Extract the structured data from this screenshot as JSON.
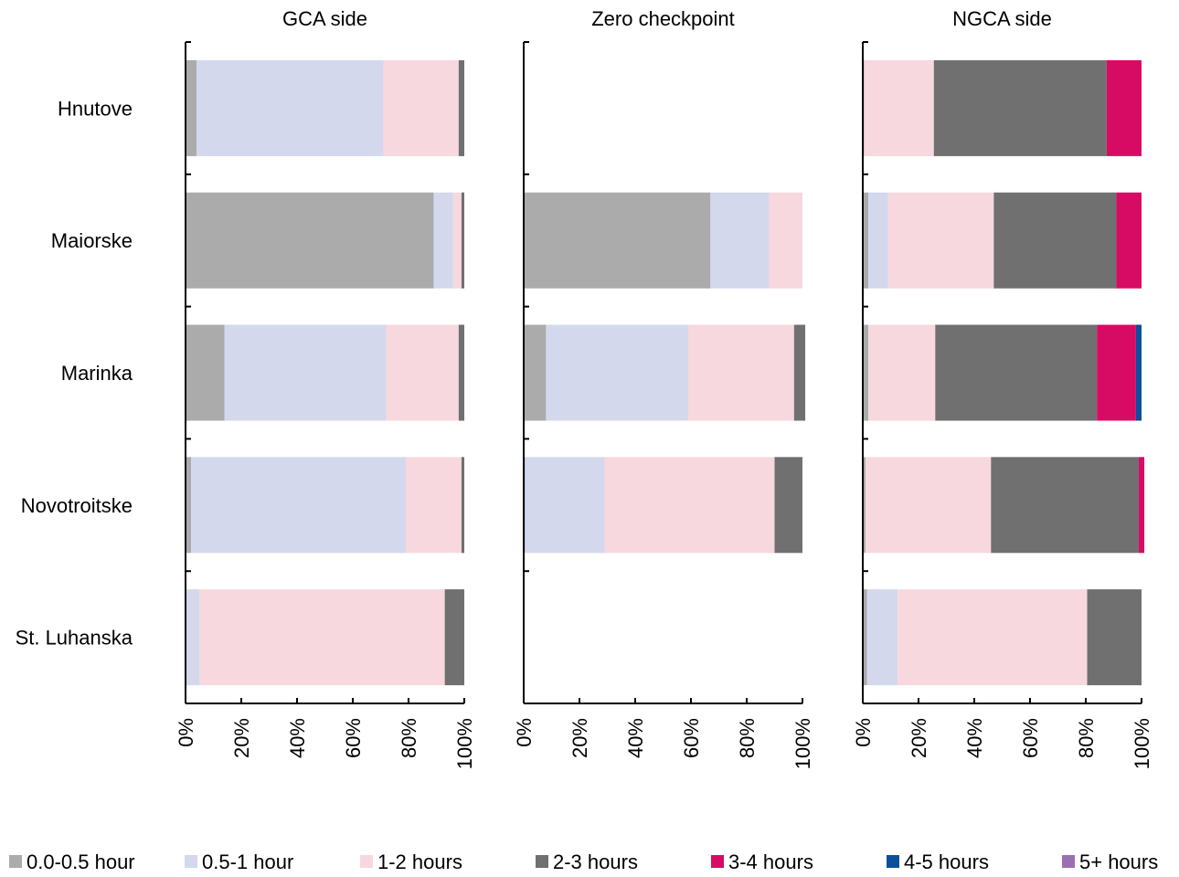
{
  "chart_data": {
    "type": "bar",
    "orientation": "horizontal",
    "stacked": "percent",
    "categories": [
      "Hnutove",
      "Maiorske",
      "Marinka",
      "Novotroitske",
      "St. Luhanska"
    ],
    "tick_labels": [
      "0%",
      "20%",
      "40%",
      "60%",
      "80%",
      "100%"
    ],
    "xlim": [
      0,
      100
    ],
    "grid": false,
    "legend_position": "bottom",
    "legend": [
      {
        "name": "0.0-0.5 hour",
        "color": "#ababab"
      },
      {
        "name": "0.5-1 hour",
        "color": "#d3d8ed"
      },
      {
        "name": "1-2 hours",
        "color": "#f6d8de"
      },
      {
        "name": "2-3 hours",
        "color": "#707070"
      },
      {
        "name": "3-4 hours",
        "color": "#d80b64"
      },
      {
        "name": "4-5 hours",
        "color": "#0a4f9e"
      },
      {
        "name": "5+ hours",
        "color": "#9c6fb4"
      }
    ],
    "panels": [
      {
        "title": "GCA side",
        "values": [
          [
            4,
            67,
            27,
            2,
            0,
            0,
            0
          ],
          [
            89,
            7,
            3,
            1,
            0,
            0,
            0
          ],
          [
            14,
            58,
            26,
            2,
            0,
            0,
            0
          ],
          [
            2,
            77,
            20,
            1,
            0,
            0,
            0
          ],
          [
            0,
            5,
            88,
            7,
            0,
            0,
            0
          ]
        ]
      },
      {
        "title": "Zero checkpoint",
        "values": [
          null,
          [
            67,
            21,
            12,
            0,
            0,
            0,
            0
          ],
          [
            8,
            51,
            38,
            4,
            0,
            0,
            0
          ],
          [
            0.5,
            28.5,
            61,
            10,
            0,
            0,
            0
          ],
          null
        ]
      },
      {
        "title": "NGCA side",
        "values": [
          [
            0.5,
            0,
            25,
            62,
            12.5,
            0,
            0
          ],
          [
            2,
            7,
            38,
            44,
            9,
            0,
            0
          ],
          [
            2,
            0,
            24,
            58,
            14,
            2,
            0
          ],
          [
            1,
            0,
            45,
            53,
            2,
            0,
            0
          ],
          [
            1.5,
            11,
            68,
            19.5,
            0,
            0,
            0
          ]
        ]
      }
    ]
  }
}
